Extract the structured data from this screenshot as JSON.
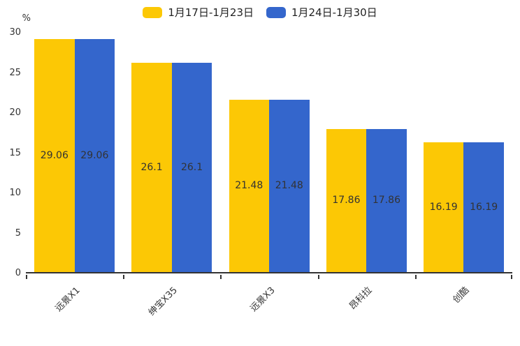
{
  "chart_data": {
    "type": "bar",
    "title": "",
    "unit": "%",
    "categories": [
      "远景X1",
      "绅宝X35",
      "远景X3",
      "昂科拉",
      "创酷"
    ],
    "series": [
      {
        "name": "1月17日-1月23日",
        "color": "#FCC805",
        "values": [
          29.06,
          26.1,
          21.48,
          17.86,
          16.19
        ]
      },
      {
        "name": "1月24日-1月30日",
        "color": "#3466CC",
        "values": [
          29.06,
          26.1,
          21.48,
          17.86,
          16.19
        ]
      }
    ],
    "ylim": [
      0,
      30
    ],
    "y_ticks": [
      30,
      25,
      20,
      15,
      10,
      5,
      0
    ],
    "grid": false,
    "legend_position": "top-center",
    "value_labels": "centered-inside-bars",
    "axis_color": "#333333",
    "text_color": "#333333",
    "background": "#ffffff"
  }
}
